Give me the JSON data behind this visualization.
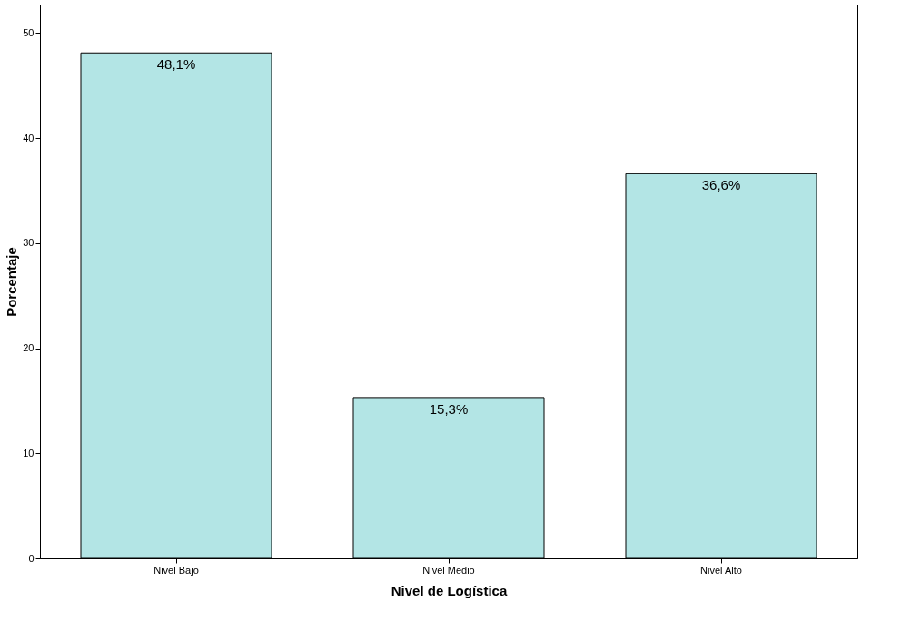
{
  "chart_data": {
    "type": "bar",
    "xlabel": "Nivel de Logística",
    "ylabel": "Porcentaje",
    "categories": [
      "Nivel Bajo",
      "Nivel Medio",
      "Nivel Alto"
    ],
    "values": [
      48.1,
      15.3,
      36.6
    ],
    "value_labels": [
      "48,1%",
      "15,3%",
      "36,6%"
    ],
    "color": "#b3e5e5",
    "ylim": [
      0,
      52.7
    ],
    "yticks": [
      0,
      10,
      20,
      30,
      40,
      50
    ],
    "grid": false
  }
}
